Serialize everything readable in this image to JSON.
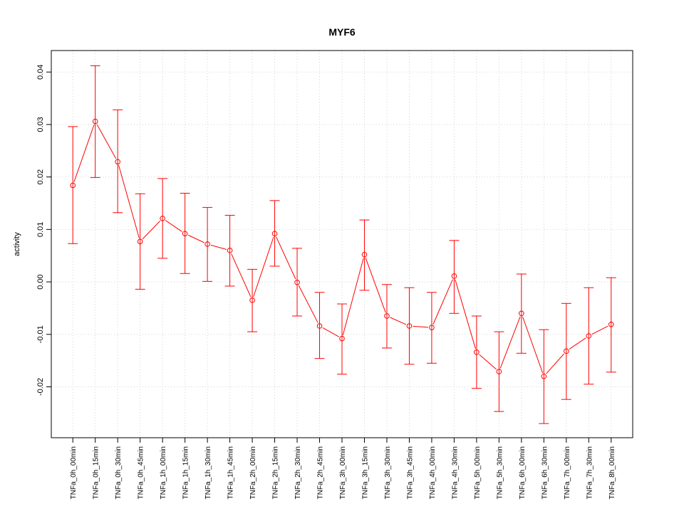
{
  "chart_data": {
    "type": "line",
    "title": "MYF6",
    "xlabel": "",
    "ylabel": "activity",
    "ylim": [
      -0.0297,
      0.0441
    ],
    "yticks": [
      -0.02,
      -0.01,
      0.0,
      0.01,
      0.02,
      0.03,
      0.04
    ],
    "ytick_labels": [
      "-0.02",
      "-0.01",
      "0.00",
      "0.01",
      "0.02",
      "0.03",
      "0.04"
    ],
    "grid": true,
    "color": "#ff0000",
    "categories": [
      "TNFa_0h_00min",
      "TNFa_0h_15min",
      "TNFa_0h_30min",
      "TNFa_0h_45min",
      "TNFa_1h_00min",
      "TNFa_1h_15min",
      "TNFa_1h_30min",
      "TNFa_1h_45min",
      "TNFa_2h_00min",
      "TNFa_2h_15min",
      "TNFa_2h_30min",
      "TNFa_2h_45min",
      "TNFa_3h_00min",
      "TNFa_3h_15min",
      "TNFa_3h_30min",
      "TNFa_3h_45min",
      "TNFa_4h_00min",
      "TNFa_4h_30min",
      "TNFa_5h_00min",
      "TNFa_5h_30min",
      "TNFa_6h_00min",
      "TNFa_6h_30min",
      "TNFa_7h_00min",
      "TNFa_7h_30min",
      "TNFa_8h_00min"
    ],
    "values": [
      0.0184,
      0.0306,
      0.0229,
      0.0077,
      0.0121,
      0.0092,
      0.0072,
      0.006,
      -0.0035,
      0.0092,
      -0.0001,
      -0.0084,
      -0.0108,
      0.0052,
      -0.0065,
      -0.0084,
      -0.0087,
      0.0011,
      -0.0134,
      -0.0171,
      -0.006,
      -0.018,
      -0.0132,
      -0.0103,
      -0.0081
    ],
    "upper": [
      0.0296,
      0.0412,
      0.0328,
      0.0168,
      0.0197,
      0.0169,
      0.0142,
      0.0127,
      0.0024,
      0.0155,
      0.0064,
      -0.002,
      -0.0042,
      0.0118,
      -0.0005,
      -0.0011,
      -0.002,
      0.0079,
      -0.0065,
      -0.0095,
      0.0015,
      -0.0091,
      -0.0041,
      -0.0011,
      0.0008
    ],
    "lower": [
      0.0073,
      0.0199,
      0.0132,
      -0.0014,
      0.0045,
      0.0016,
      0.0001,
      -0.0008,
      -0.0095,
      0.003,
      -0.0065,
      -0.0146,
      -0.0176,
      -0.0016,
      -0.0126,
      -0.0157,
      -0.0155,
      -0.006,
      -0.0203,
      -0.0247,
      -0.0136,
      -0.027,
      -0.0224,
      -0.0195,
      -0.0172
    ]
  }
}
